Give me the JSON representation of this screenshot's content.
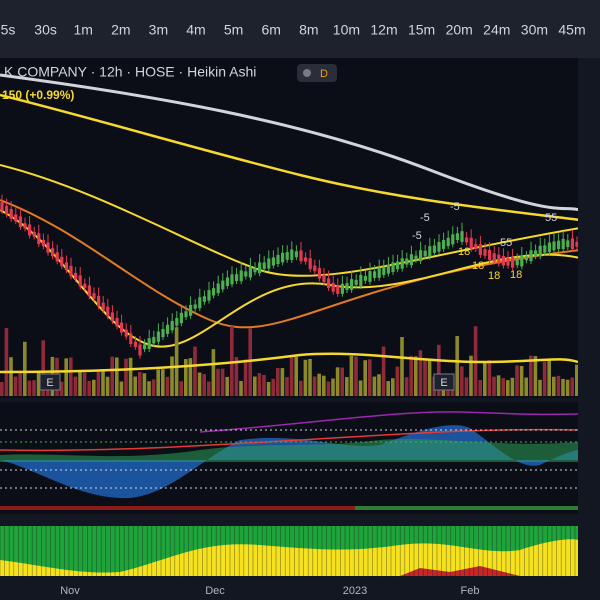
{
  "toolbar": {
    "intervals": [
      "5s",
      "30s",
      "1m",
      "2m",
      "3m",
      "4m",
      "5m",
      "6m",
      "8m",
      "10m",
      "12m",
      "15m",
      "20m",
      "24m",
      "30m",
      "45m"
    ]
  },
  "legend": {
    "symbol": "K COMPANY · 12h · HOSE · Heikin Ashi",
    "badge": "D",
    "change": "150 (+0.99%)"
  },
  "events": [
    "E",
    "E"
  ],
  "signals": [
    "-5",
    "-5",
    "-5",
    "55",
    "55",
    "18",
    "18",
    "18",
    "18"
  ],
  "time_axis": [
    "Nov",
    "Dec",
    "2023",
    "Feb"
  ]
}
